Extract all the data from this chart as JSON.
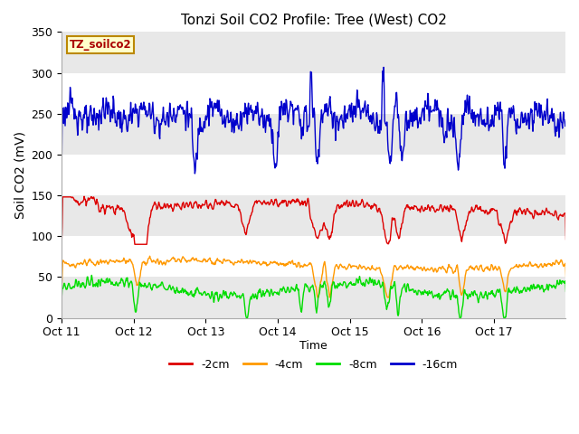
{
  "title": "Tonzi Soil CO2 Profile: Tree (West) CO2",
  "ylabel": "Soil CO2 (mV)",
  "xlabel": "Time",
  "legend_title": "TZ_soilco2",
  "ylim": [
    0,
    350
  ],
  "background_color": "#ffffff",
  "plot_bg_color": "#ffffff",
  "band_colors": [
    "#e8e8e8",
    "#ffffff"
  ],
  "band_edges": [
    0,
    50,
    100,
    150,
    200,
    250,
    300,
    350
  ],
  "series": {
    "-2cm": {
      "color": "#dd0000",
      "lw": 1.0
    },
    "-4cm": {
      "color": "#ff9900",
      "lw": 1.0
    },
    "-8cm": {
      "color": "#00dd00",
      "lw": 1.0
    },
    "-16cm": {
      "color": "#0000cc",
      "lw": 1.0
    }
  },
  "xticklabels": [
    "Oct 11",
    "Oct 12",
    "Oct 13",
    "Oct 14",
    "Oct 15",
    "Oct 16",
    "Oct 17"
  ],
  "legend_entries": [
    "-2cm",
    "-4cm",
    "-8cm",
    "-16cm"
  ],
  "legend_colors": [
    "#dd0000",
    "#ff9900",
    "#00dd00",
    "#0000cc"
  ],
  "title_fontsize": 11,
  "axis_fontsize": 9,
  "ylabel_fontsize": 10
}
